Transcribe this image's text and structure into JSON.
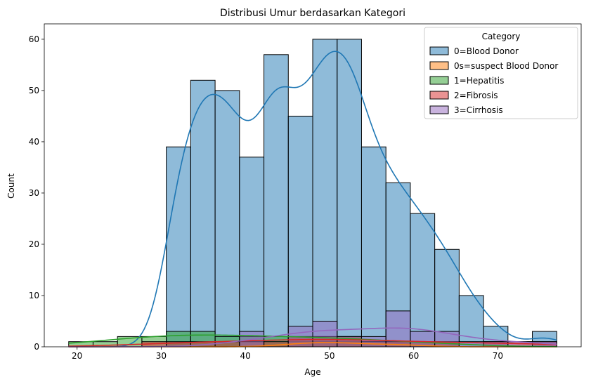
{
  "chart_data": {
    "type": "bar",
    "title": "Distribusi Umur berdasarkan Kategori",
    "xlabel": "Age",
    "ylabel": "Count",
    "xlim": [
      16.1,
      79.9
    ],
    "ylim": [
      0,
      63
    ],
    "xticks": [
      20,
      30,
      40,
      50,
      60,
      70
    ],
    "yticks": [
      0,
      10,
      20,
      30,
      40,
      50,
      60
    ],
    "bin_edges": [
      19,
      21.9,
      24.8,
      27.7,
      30.6,
      33.5,
      36.4,
      39.3,
      42.2,
      45.1,
      48,
      50.9,
      53.8,
      56.7,
      59.6,
      62.5,
      65.4,
      68.3,
      71.2,
      74.1,
      77
    ],
    "grid": false,
    "legend": {
      "title": "Category",
      "position": "top-right"
    },
    "series": [
      {
        "name": "0=Blood Donor",
        "color": "#1f77b4",
        "values": [
          0,
          0,
          0,
          0,
          39,
          52,
          50,
          37,
          57,
          45,
          60,
          60,
          39,
          32,
          26,
          19,
          10,
          4,
          0,
          3
        ]
      },
      {
        "name": "0s=suspect Blood Donor",
        "color": "#ff7f0e",
        "values": [
          0,
          0,
          0,
          0,
          0,
          0,
          0,
          0,
          0,
          1,
          1,
          1,
          0,
          1,
          0,
          0,
          0,
          0,
          0,
          0
        ]
      },
      {
        "name": "1=Hepatitis",
        "color": "#2ca02c",
        "values": [
          1,
          1,
          2,
          2,
          3,
          3,
          2,
          2,
          2,
          2,
          2,
          2,
          1,
          1,
          1,
          1,
          0,
          0,
          0,
          0
        ]
      },
      {
        "name": "2=Fibrosis",
        "color": "#d62728",
        "values": [
          0,
          0,
          0,
          1,
          1,
          1,
          1,
          1,
          1,
          2,
          2,
          2,
          1,
          1,
          1,
          1,
          0,
          1,
          1,
          1
        ]
      },
      {
        "name": "3=Cirrhosis",
        "color": "#9467bd",
        "values": [
          0,
          0,
          0,
          0,
          0,
          0,
          0,
          3,
          0,
          4,
          5,
          2,
          2,
          7,
          3,
          3,
          1,
          1,
          1,
          1
        ]
      }
    ]
  }
}
